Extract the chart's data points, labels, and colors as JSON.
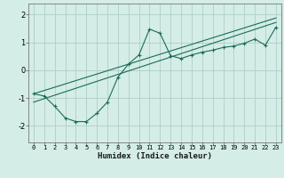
{
  "xlabel": "Humidex (Indice chaleur)",
  "bg_color": "#d4ede6",
  "grid_color": "#aecfc7",
  "line_color": "#1a6b5a",
  "xlim": [
    -0.5,
    23.5
  ],
  "ylim": [
    -2.6,
    2.4
  ],
  "xticks": [
    0,
    1,
    2,
    3,
    4,
    5,
    6,
    7,
    8,
    9,
    10,
    11,
    12,
    13,
    14,
    15,
    16,
    17,
    18,
    19,
    20,
    21,
    22,
    23
  ],
  "yticks": [
    -2,
    -1,
    0,
    1,
    2
  ],
  "series1_x": [
    0,
    1,
    2,
    3,
    4,
    5,
    6,
    7,
    8,
    9,
    10,
    11,
    12,
    13,
    14,
    15,
    16,
    17,
    18,
    19,
    20,
    21,
    22,
    23
  ],
  "series1_y": [
    -0.85,
    -0.93,
    -1.3,
    -1.72,
    -1.85,
    -1.85,
    -1.55,
    -1.15,
    -0.25,
    0.22,
    0.55,
    1.48,
    1.33,
    0.52,
    0.42,
    0.55,
    0.65,
    0.72,
    0.82,
    0.87,
    0.97,
    1.12,
    0.9,
    1.55
  ],
  "series2_x": [
    0,
    23
  ],
  "series2_y": [
    -0.85,
    1.88
  ],
  "series3_x": [
    0,
    23
  ],
  "series3_y": [
    -1.15,
    1.72
  ]
}
